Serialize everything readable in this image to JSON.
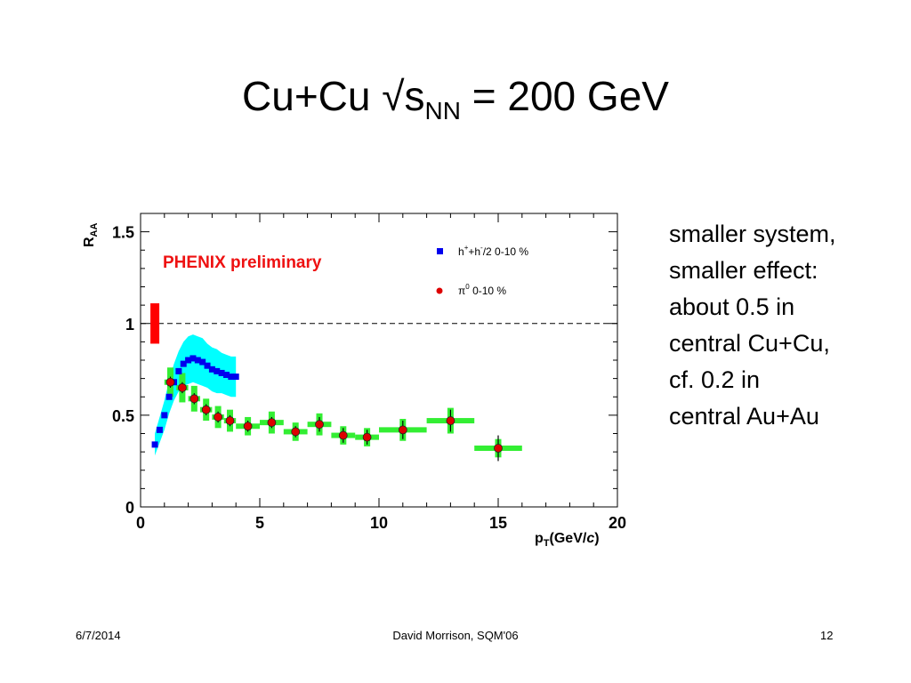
{
  "slide": {
    "title_main": "Cu+Cu √s",
    "title_sub": "NN",
    "title_rest": " = 200 GeV",
    "side_text": [
      "smaller system,",
      "smaller effect:",
      "about 0.5 in",
      "central Cu+Cu,",
      "cf. 0.2 in",
      "central Au+Au"
    ]
  },
  "footer": {
    "date": "6/7/2014",
    "center": "David Morrison, SQM'06",
    "page": "12"
  },
  "chart_data": {
    "type": "scatter",
    "annotation": "PHENIX preliminary",
    "annotation_color": "#ee1111",
    "xlabel": "p",
    "xlabel_sub": "T",
    "xlabel_unit": "(GeV/",
    "xlabel_c": "c",
    "xlabel_close": ")",
    "ylabel": "R",
    "ylabel_sub": "AA",
    "xlim": [
      0,
      20
    ],
    "ylim": [
      0,
      1.6
    ],
    "xticks": [
      "0",
      "5",
      "10",
      "15",
      "20"
    ],
    "yticks": [
      "0",
      "0.5",
      "1",
      "1.5"
    ],
    "reference_line": 1,
    "grid": false,
    "legend_placement": "top-right",
    "normalization_box": {
      "x": 0.6,
      "ylow": 0.89,
      "yhigh": 1.11,
      "color": "#ff0000"
    },
    "series": [
      {
        "name": "h",
        "legend_parts": [
          "h",
          "+",
          "+h",
          "-",
          "/2 0-10 %"
        ],
        "marker": "square",
        "color": "#0000ee",
        "band_color": "#00ffff",
        "x": [
          0.6,
          0.8,
          1.0,
          1.2,
          1.4,
          1.6,
          1.8,
          2.0,
          2.2,
          2.4,
          2.6,
          2.8,
          3.0,
          3.2,
          3.4,
          3.6,
          3.8,
          4.0
        ],
        "y": [
          0.34,
          0.42,
          0.5,
          0.6,
          0.68,
          0.74,
          0.78,
          0.8,
          0.81,
          0.8,
          0.79,
          0.77,
          0.75,
          0.74,
          0.73,
          0.72,
          0.71,
          0.71
        ],
        "band": [
          0.06,
          0.07,
          0.08,
          0.09,
          0.1,
          0.11,
          0.12,
          0.13,
          0.13,
          0.13,
          0.13,
          0.12,
          0.12,
          0.12,
          0.11,
          0.11,
          0.11,
          0.11
        ]
      },
      {
        "name": "π",
        "legend_parts": [
          "π",
          "0",
          " 0-10 %"
        ],
        "marker": "circle",
        "color": "#dd0000",
        "syst_color": "#33ee33",
        "x": [
          1.25,
          1.75,
          2.25,
          2.75,
          3.25,
          3.75,
          4.5,
          5.5,
          6.5,
          7.5,
          8.5,
          9.5,
          11,
          13,
          15
        ],
        "y": [
          0.68,
          0.65,
          0.59,
          0.53,
          0.49,
          0.47,
          0.44,
          0.46,
          0.41,
          0.45,
          0.39,
          0.38,
          0.42,
          0.47,
          0.32
        ],
        "err": [
          0.03,
          0.03,
          0.03,
          0.03,
          0.03,
          0.03,
          0.03,
          0.03,
          0.03,
          0.04,
          0.04,
          0.04,
          0.05,
          0.06,
          0.07
        ],
        "syst": [
          0.08,
          0.08,
          0.07,
          0.06,
          0.06,
          0.06,
          0.05,
          0.06,
          0.05,
          0.06,
          0.05,
          0.05,
          0.06,
          0.07,
          0.05
        ],
        "xhw": [
          0.25,
          0.25,
          0.25,
          0.25,
          0.25,
          0.25,
          0.5,
          0.5,
          0.5,
          0.5,
          0.5,
          0.5,
          1,
          1,
          1
        ]
      }
    ]
  }
}
